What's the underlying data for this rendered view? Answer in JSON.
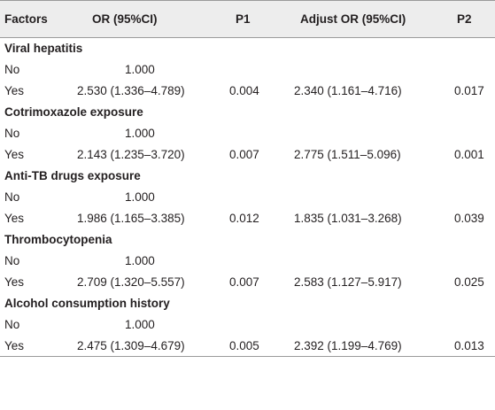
{
  "header": {
    "factors": "Factors",
    "or": "OR (95%CI)",
    "p1": "P1",
    "adjust_or": "Adjust OR (95%CI)",
    "p2": "P2"
  },
  "groups": [
    {
      "name": "Viral hepatitis",
      "rows": [
        {
          "level": "No",
          "or": "1.000",
          "p1": "",
          "adjust_or": "",
          "p2": ""
        },
        {
          "level": "Yes",
          "or": "2.530 (1.336–4.789)",
          "p1": "0.004",
          "adjust_or": "2.340 (1.161–4.716)",
          "p2": "0.017"
        }
      ]
    },
    {
      "name": "Cotrimoxazole exposure",
      "rows": [
        {
          "level": "No",
          "or": "1.000",
          "p1": "",
          "adjust_or": "",
          "p2": ""
        },
        {
          "level": "Yes",
          "or": "2.143 (1.235–3.720)",
          "p1": "0.007",
          "adjust_or": "2.775 (1.511–5.096)",
          "p2": "0.001"
        }
      ]
    },
    {
      "name": "Anti-TB drugs exposure",
      "rows": [
        {
          "level": "No",
          "or": "1.000",
          "p1": "",
          "adjust_or": "",
          "p2": ""
        },
        {
          "level": "Yes",
          "or": "1.986 (1.165–3.385)",
          "p1": "0.012",
          "adjust_or": "1.835 (1.031–3.268)",
          "p2": "0.039"
        }
      ]
    },
    {
      "name": "Thrombocytopenia",
      "rows": [
        {
          "level": "No",
          "or": "1.000",
          "p1": "",
          "adjust_or": "",
          "p2": ""
        },
        {
          "level": "Yes",
          "or": "2.709 (1.320–5.557)",
          "p1": "0.007",
          "adjust_or": "2.583 (1.127–5.917)",
          "p2": "0.025"
        }
      ]
    },
    {
      "name": "Alcohol consumption history",
      "rows": [
        {
          "level": "No",
          "or": "1.000",
          "p1": "",
          "adjust_or": "",
          "p2": ""
        },
        {
          "level": "Yes",
          "or": "2.475 (1.309–4.679)",
          "p1": "0.005",
          "adjust_or": "2.392 (1.199–4.769)",
          "p2": "0.013"
        }
      ]
    }
  ]
}
